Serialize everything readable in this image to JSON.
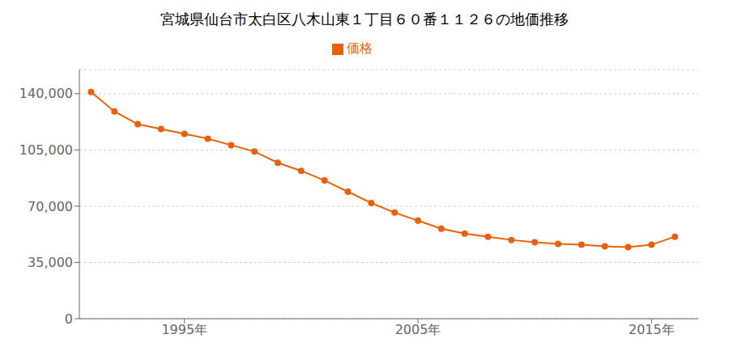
{
  "chart_data": {
    "type": "line",
    "title": "宮城県仙台市太白区八木山東１丁目６０番１１２６の地価推移",
    "x": [
      1991,
      1992,
      1993,
      1994,
      1995,
      1996,
      1997,
      1998,
      1999,
      2000,
      2001,
      2002,
      2003,
      2004,
      2005,
      2006,
      2007,
      2008,
      2009,
      2010,
      2011,
      2012,
      2013,
      2014,
      2015,
      2016
    ],
    "series": [
      {
        "name": "価格",
        "color": "#E8600A",
        "marker": "circle",
        "values": [
          141000,
          129000,
          121000,
          118000,
          115000,
          112000,
          108000,
          104000,
          97000,
          92000,
          86000,
          79000,
          72000,
          66000,
          61000,
          56000,
          53000,
          51000,
          49000,
          47500,
          46500,
          46000,
          45000,
          44500,
          46000,
          51000
        ]
      }
    ],
    "xlim": [
      1990.5,
      2017
    ],
    "xticks": [
      {
        "value": 1995,
        "label": "1995年"
      },
      {
        "value": 2005,
        "label": "2005年"
      },
      {
        "value": 2015,
        "label": "2015年"
      }
    ],
    "ylim": [
      0,
      155000
    ],
    "yticks": [
      0,
      {
        "value": 35000,
        "label": "35,000"
      },
      {
        "value": 70000,
        "label": "70,000"
      },
      {
        "value": 105000,
        "label": "105,000"
      },
      {
        "value": 140000,
        "label": "140,000"
      }
    ],
    "grid": "y",
    "legend": "top"
  }
}
